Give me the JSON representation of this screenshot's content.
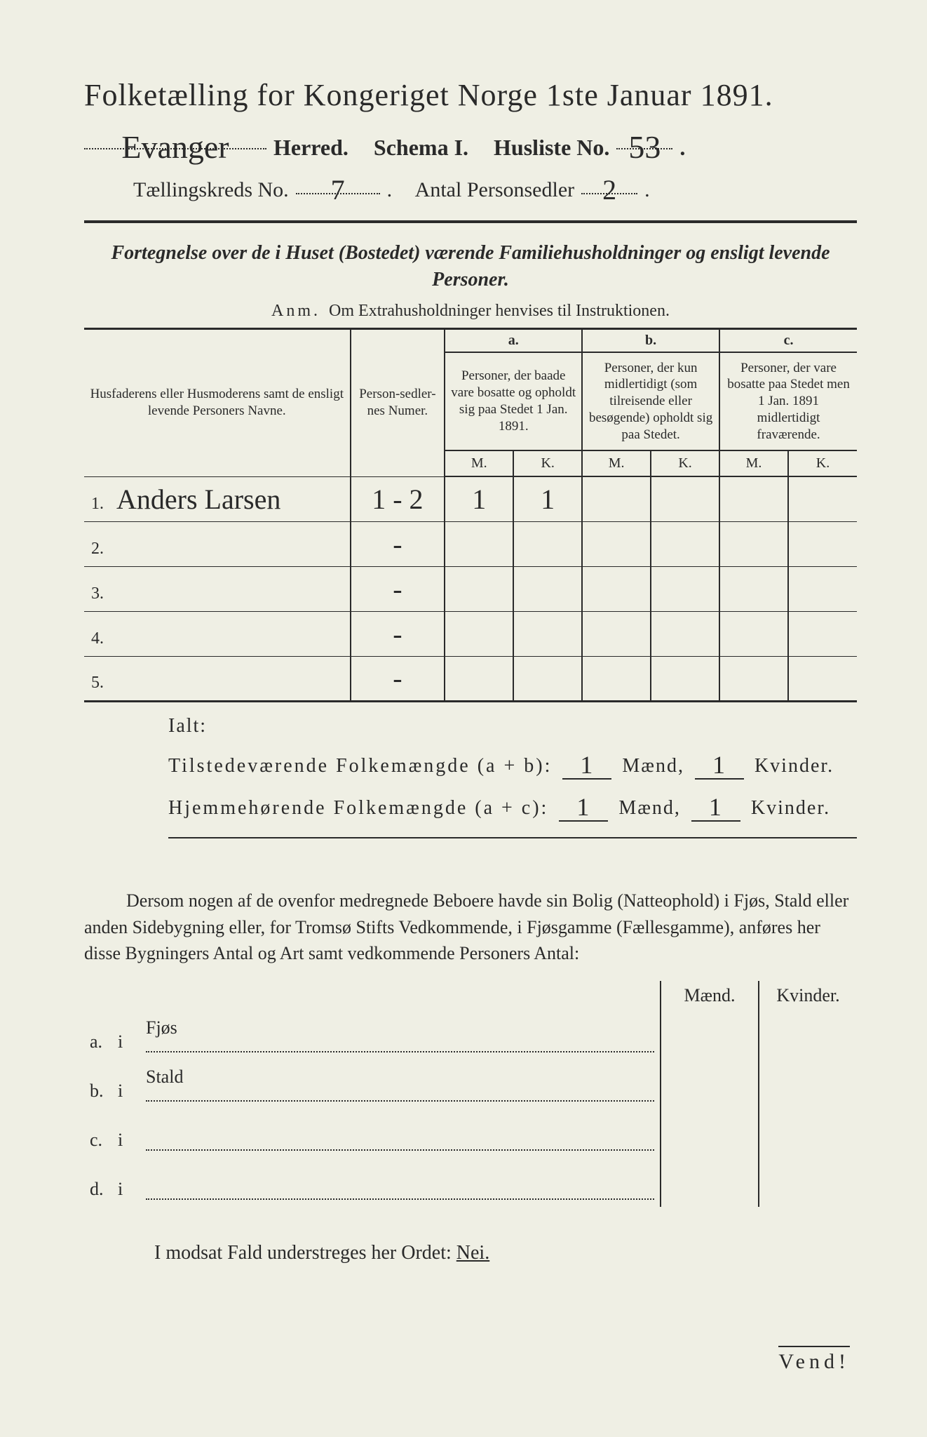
{
  "colors": {
    "background": "#efefe4",
    "ink": "#2a2a2a",
    "rule": "#2a2a2a"
  },
  "typography": {
    "body_family": "Times New Roman",
    "handwriting_family": "Brush Script MT",
    "title_size_pt": 44,
    "header_size_pt": 30,
    "body_size_pt": 26,
    "table_body_size_pt": 20
  },
  "header": {
    "title": "Folketælling for Kongeriget Norge 1ste Januar 1891.",
    "herred_value_hw": "Evanger",
    "herred_label": "Herred.",
    "schema_label": "Schema I.",
    "husliste_label": "Husliste No.",
    "husliste_no_hw": "53",
    "kreds_label": "Tællingskreds No.",
    "kreds_no_hw": "7",
    "personsedler_label": "Antal Personsedler",
    "personsedler_no_hw": "2"
  },
  "subtitle": "Fortegnelse over de i Huset (Bostedet) værende Familiehusholdninger og ensligt levende Personer.",
  "anm_label": "Anm.",
  "anm_text": "Om Extrahusholdninger henvises til Instruktionen.",
  "table": {
    "col_name": "Husfaderens eller Husmoderens samt de ensligt levende Personers Navne.",
    "col_sedler": "Person-sedler-nes Numer.",
    "col_a_top": "a.",
    "col_a": "Personer, der baade vare bosatte og opholdt sig paa Stedet 1 Jan. 1891.",
    "col_b_top": "b.",
    "col_b": "Personer, der kun midlertidigt (som tilreisende eller besøgende) opholdt sig paa Stedet.",
    "col_c_top": "c.",
    "col_c": "Personer, der vare bosatte paa Stedet men 1 Jan. 1891 midlertidigt fraværende.",
    "m": "M.",
    "k": "K.",
    "rows": [
      {
        "num": "1.",
        "name_hw": "Anders Larsen",
        "sedler_hw": "1 - 2",
        "a_m_hw": "1",
        "a_k_hw": "1",
        "b_m_hw": "",
        "b_k_hw": "",
        "c_m_hw": "",
        "c_k_hw": ""
      },
      {
        "num": "2.",
        "name_hw": "",
        "sedler_hw": "-",
        "a_m_hw": "",
        "a_k_hw": "",
        "b_m_hw": "",
        "b_k_hw": "",
        "c_m_hw": "",
        "c_k_hw": ""
      },
      {
        "num": "3.",
        "name_hw": "",
        "sedler_hw": "-",
        "a_m_hw": "",
        "a_k_hw": "",
        "b_m_hw": "",
        "b_k_hw": "",
        "c_m_hw": "",
        "c_k_hw": ""
      },
      {
        "num": "4.",
        "name_hw": "",
        "sedler_hw": "-",
        "a_m_hw": "",
        "a_k_hw": "",
        "b_m_hw": "",
        "b_k_hw": "",
        "c_m_hw": "",
        "c_k_hw": ""
      },
      {
        "num": "5.",
        "name_hw": "",
        "sedler_hw": "-",
        "a_m_hw": "",
        "a_k_hw": "",
        "b_m_hw": "",
        "b_k_hw": "",
        "c_m_hw": "",
        "c_k_hw": ""
      }
    ]
  },
  "totals": {
    "ialt": "Ialt:",
    "line1_label": "Tilstedeværende Folkemængde (a + b):",
    "line2_label": "Hjemmehørende Folkemængde (a + c):",
    "maend": "Mænd,",
    "kvinder": "Kvinder.",
    "line1_m_hw": "1",
    "line1_k_hw": "1",
    "line2_m_hw": "1",
    "line2_k_hw": "1"
  },
  "paragraph": "Dersom nogen af de ovenfor medregnede Beboere havde sin Bolig (Natteophold) i Fjøs, Stald eller anden Sidebygning eller, for Tromsø Stifts Vedkommende, i Fjøsgamme (Fællesgamme), anføres her disse Bygningers Antal og Art samt vedkommende Personers Antal:",
  "subtable": {
    "maend": "Mænd.",
    "kvinder": "Kvinder.",
    "rows": [
      {
        "lab": "a.",
        "i": "i",
        "text": "Fjøs"
      },
      {
        "lab": "b.",
        "i": "i",
        "text": "Stald"
      },
      {
        "lab": "c.",
        "i": "i",
        "text": ""
      },
      {
        "lab": "d.",
        "i": "i",
        "text": ""
      }
    ]
  },
  "footer": {
    "text_pre": "I modsat Fald understreges her Ordet: ",
    "nei": "Nei.",
    "vend": "Vend!"
  }
}
